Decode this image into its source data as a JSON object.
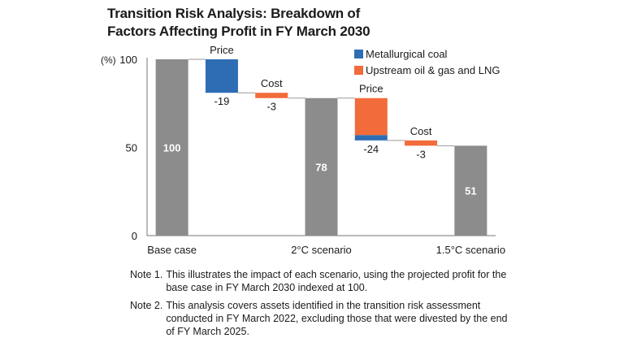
{
  "title": {
    "line1": "Transition Risk Analysis: Breakdown of",
    "line2": "Factors Affecting Profit in FY March 2030"
  },
  "legend": [
    {
      "label": "Metallurgical coal",
      "color": "#2e6db4"
    },
    {
      "label": "Upstream oil & gas and LNG",
      "color": "#f26b3a"
    }
  ],
  "notes": [
    {
      "label": "Note 1.",
      "text": "This illustrates the impact of each scenario, using the projected profit for the base case in FY March 2030 indexed at 100."
    },
    {
      "label": "Note 2.",
      "text": "This analysis covers assets identified in the transition risk assessment conducted in FY March 2022, excluding those that were divested by the end of FY March 2025."
    }
  ],
  "chart_data": {
    "type": "bar",
    "subtype": "waterfall",
    "title": "Transition Risk Analysis: Breakdown of Factors Affecting Profit in FY March 2030",
    "ylabel": "(%)",
    "ylim": [
      0,
      100
    ],
    "yticks": [
      0,
      50,
      100
    ],
    "categories": [
      "Base case",
      "2°C scenario",
      "1.5°C scenario"
    ],
    "colors": {
      "total": "#8c8c8c",
      "coal": "#2e6db4",
      "oil": "#f26b3a"
    },
    "steps": [
      {
        "kind": "total",
        "value": 100,
        "label": "100",
        "category": "Base case"
      },
      {
        "kind": "change",
        "name": "Price",
        "value": -19,
        "label": "-19",
        "segments": [
          {
            "series": "Metallurgical coal",
            "value": -19
          }
        ]
      },
      {
        "kind": "change",
        "name": "Cost",
        "value": -3,
        "label": "-3",
        "segments": [
          {
            "series": "Upstream oil & gas and LNG",
            "value": -3
          }
        ]
      },
      {
        "kind": "total",
        "value": 78,
        "label": "78",
        "category": "2°C scenario"
      },
      {
        "kind": "change",
        "name": "Price",
        "value": -24,
        "label": "-24",
        "segments": [
          {
            "series": "Upstream oil & gas and LNG",
            "value": -21
          },
          {
            "series": "Metallurgical coal",
            "value": -3
          }
        ]
      },
      {
        "kind": "change",
        "name": "Cost",
        "value": -3,
        "label": "-3",
        "segments": [
          {
            "series": "Upstream oil & gas and LNG",
            "value": -3
          }
        ]
      },
      {
        "kind": "total",
        "value": 51,
        "label": "51",
        "category": "1.5°C scenario"
      }
    ]
  }
}
